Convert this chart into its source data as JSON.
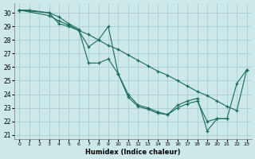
{
  "xlabel": "Humidex (Indice chaleur)",
  "ylabel": "",
  "bg_color": "#cce8e8",
  "grid_color": "#aacece",
  "line_color": "#1a6b5a",
  "xlim": [
    -0.5,
    23.5
  ],
  "ylim": [
    20.7,
    30.7
  ],
  "yticks": [
    21,
    22,
    23,
    24,
    25,
    26,
    27,
    28,
    29,
    30
  ],
  "xticks": [
    0,
    1,
    2,
    3,
    4,
    5,
    6,
    7,
    8,
    9,
    10,
    11,
    12,
    13,
    14,
    15,
    16,
    17,
    18,
    19,
    20,
    21,
    22,
    23
  ],
  "series1": [
    [
      0,
      30.2
    ],
    [
      1,
      30.2
    ],
    [
      3,
      30.0
    ],
    [
      4,
      29.7
    ],
    [
      5,
      29.2
    ],
    [
      6,
      28.8
    ],
    [
      7,
      26.3
    ],
    [
      8,
      26.3
    ],
    [
      9,
      26.6
    ],
    [
      10,
      25.5
    ],
    [
      11,
      24.0
    ],
    [
      12,
      23.2
    ],
    [
      13,
      23.0
    ],
    [
      14,
      22.7
    ],
    [
      15,
      22.5
    ],
    [
      16,
      23.0
    ],
    [
      17,
      23.3
    ],
    [
      18,
      23.5
    ],
    [
      19,
      22.0
    ],
    [
      20,
      22.2
    ],
    [
      21,
      22.2
    ],
    [
      22,
      24.8
    ],
    [
      23,
      25.8
    ]
  ],
  "series2": [
    [
      0,
      30.2
    ],
    [
      3,
      29.8
    ],
    [
      4,
      29.4
    ],
    [
      5,
      29.1
    ],
    [
      6,
      28.7
    ],
    [
      7,
      28.4
    ],
    [
      8,
      28.0
    ],
    [
      9,
      27.6
    ],
    [
      10,
      27.3
    ],
    [
      11,
      26.9
    ],
    [
      12,
      26.5
    ],
    [
      13,
      26.1
    ],
    [
      14,
      25.7
    ],
    [
      15,
      25.4
    ],
    [
      16,
      25.0
    ],
    [
      17,
      24.6
    ],
    [
      18,
      24.2
    ],
    [
      19,
      23.9
    ],
    [
      20,
      23.5
    ],
    [
      21,
      23.1
    ],
    [
      22,
      22.8
    ],
    [
      23,
      25.8
    ]
  ],
  "series3": [
    [
      0,
      30.2
    ],
    [
      3,
      30.0
    ],
    [
      4,
      29.2
    ],
    [
      5,
      29.0
    ],
    [
      6,
      28.7
    ],
    [
      7,
      27.5
    ],
    [
      8,
      28.0
    ],
    [
      9,
      29.0
    ],
    [
      10,
      25.5
    ],
    [
      11,
      23.8
    ],
    [
      12,
      23.1
    ],
    [
      13,
      22.9
    ],
    [
      14,
      22.6
    ],
    [
      15,
      22.5
    ],
    [
      16,
      23.2
    ],
    [
      17,
      23.5
    ],
    [
      18,
      23.7
    ],
    [
      19,
      21.3
    ],
    [
      20,
      22.2
    ],
    [
      21,
      22.2
    ]
  ]
}
